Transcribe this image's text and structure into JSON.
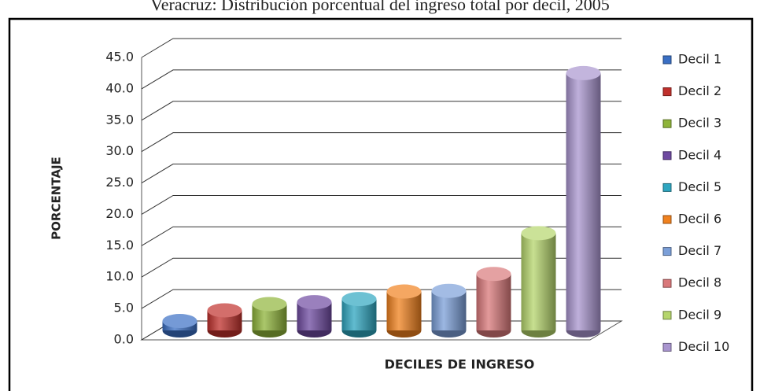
{
  "chart_data": {
    "type": "bar3d",
    "title": "Veracruz: Distribución porcentual del ingreso total por decil, 2005",
    "x_label": "DECILES DE INGRESO",
    "y_label": "PORCENTAJE",
    "categories": [
      "Decil 1",
      "Decil 2",
      "Decil 3",
      "Decil 4",
      "Decil 5",
      "Decil 6",
      "Decil 7",
      "Decil 8",
      "Decil 9",
      "Decil 10"
    ],
    "values": [
      1.5,
      3.2,
      4.2,
      4.5,
      5.0,
      6.2,
      6.3,
      9.0,
      15.5,
      41.0
    ],
    "colors": [
      "#3a6fc4",
      "#c0302c",
      "#8fb43a",
      "#6e4aa0",
      "#2ea6c0",
      "#f0811e",
      "#7b9fd8",
      "#d9787a",
      "#b5d56c",
      "#a995cf"
    ],
    "ylim": [
      0,
      45
    ],
    "yticks": [
      {
        "value": 0,
        "label": "0.0"
      },
      {
        "value": 5,
        "label": "5.0"
      },
      {
        "value": 10,
        "label": "10.0"
      },
      {
        "value": 15,
        "label": "15.0"
      },
      {
        "value": 20,
        "label": "20.0"
      },
      {
        "value": 25,
        "label": "25.0"
      },
      {
        "value": 30,
        "label": "30.0"
      },
      {
        "value": 35,
        "label": "35.0"
      },
      {
        "value": 40,
        "label": "40.0"
      },
      {
        "value": 45,
        "label": "45.0"
      }
    ],
    "grid": true,
    "legend": "right"
  }
}
